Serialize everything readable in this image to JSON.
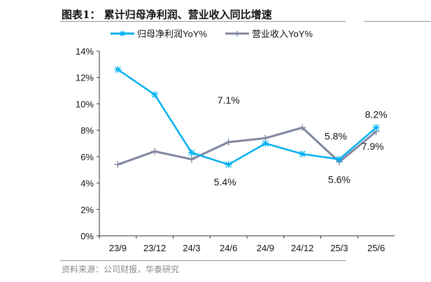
{
  "header": {
    "title": "图表1： 累计归母净利润、营业收入同比增速"
  },
  "footer": {
    "source": "资料来源：公司财报，华泰研究"
  },
  "chart_data": {
    "type": "line",
    "title": "图表1： 累计归母净利润、营业收入同比增速",
    "categories": [
      "23/9",
      "23/12",
      "24/3",
      "24/6",
      "24/9",
      "24/12",
      "25/3",
      "25/6"
    ],
    "series": [
      {
        "name": "归母净利润YoY%",
        "color": "#00b0f0",
        "marker": "asterisk",
        "values": [
          12.6,
          10.7,
          6.3,
          5.4,
          7.0,
          6.2,
          5.8,
          8.2
        ]
      },
      {
        "name": "营业收入YoY%",
        "color": "#8085a0",
        "marker": "plus",
        "values": [
          5.4,
          6.4,
          5.8,
          7.1,
          7.4,
          8.2,
          5.6,
          7.9
        ]
      }
    ],
    "data_labels": [
      {
        "series": 1,
        "index": 3,
        "text": "7.1%"
      },
      {
        "series": 0,
        "index": 3,
        "text": "5.4%"
      },
      {
        "series": 0,
        "index": 6,
        "text": "5.8%"
      },
      {
        "series": 1,
        "index": 6,
        "text": "5.6%"
      },
      {
        "series": 0,
        "index": 7,
        "text": "8.2%"
      },
      {
        "series": 1,
        "index": 7,
        "text": "7.9%"
      }
    ],
    "yticks": [
      "0%",
      "2%",
      "4%",
      "6%",
      "8%",
      "10%",
      "12%",
      "14%"
    ],
    "ylim": [
      0,
      14
    ],
    "grid": false,
    "legend": "top"
  }
}
